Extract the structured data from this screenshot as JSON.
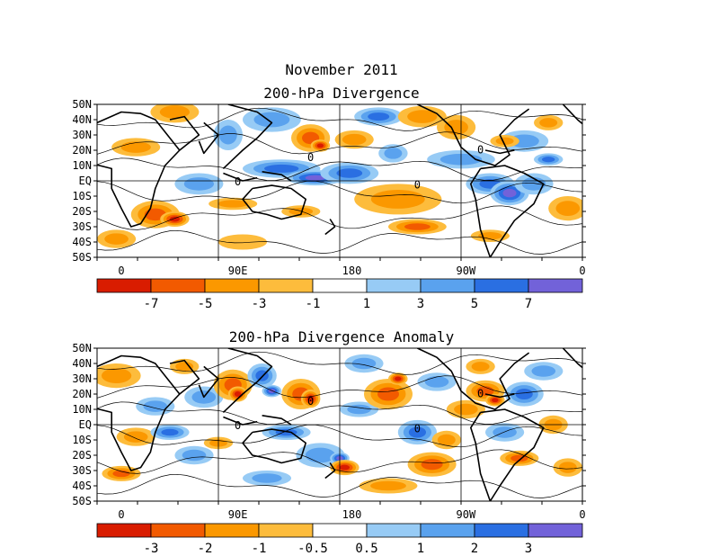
{
  "page": {
    "month_title": "November 2011"
  },
  "colors": {
    "neg": [
      "#d91c00",
      "#f25a00",
      "#fb9800",
      "#fdbc3c"
    ],
    "neutral": "#ffffff",
    "pos": [
      "#97cbf5",
      "#5aa2ee",
      "#2a6fe2",
      "#7262d9"
    ]
  },
  "panels": [
    {
      "id": "divergence",
      "title": "200-hPa Divergence",
      "lat_ticks": [
        "50N",
        "40N",
        "30N",
        "20N",
        "10N",
        "EQ",
        "10S",
        "20S",
        "30S",
        "40S",
        "50S"
      ],
      "lon_ticks": [
        "0",
        "90E",
        "180",
        "90W",
        "0"
      ],
      "contour_label": "0",
      "colorbar_labels": [
        "-7",
        "-5",
        "-3",
        "-1",
        "1",
        "3",
        "5",
        "7"
      ]
    },
    {
      "id": "anomaly",
      "title": "200-hPa Divergence Anomaly",
      "lat_ticks": [
        "50N",
        "40N",
        "30N",
        "20N",
        "10N",
        "EQ",
        "10S",
        "20S",
        "30S",
        "40S",
        "50S"
      ],
      "lon_ticks": [
        "0",
        "90E",
        "180",
        "90W",
        "0"
      ],
      "contour_label": "0",
      "colorbar_labels": [
        "-3",
        "-2",
        "-1",
        "-0.5",
        "0.5",
        "1",
        "2",
        "3"
      ]
    }
  ]
}
